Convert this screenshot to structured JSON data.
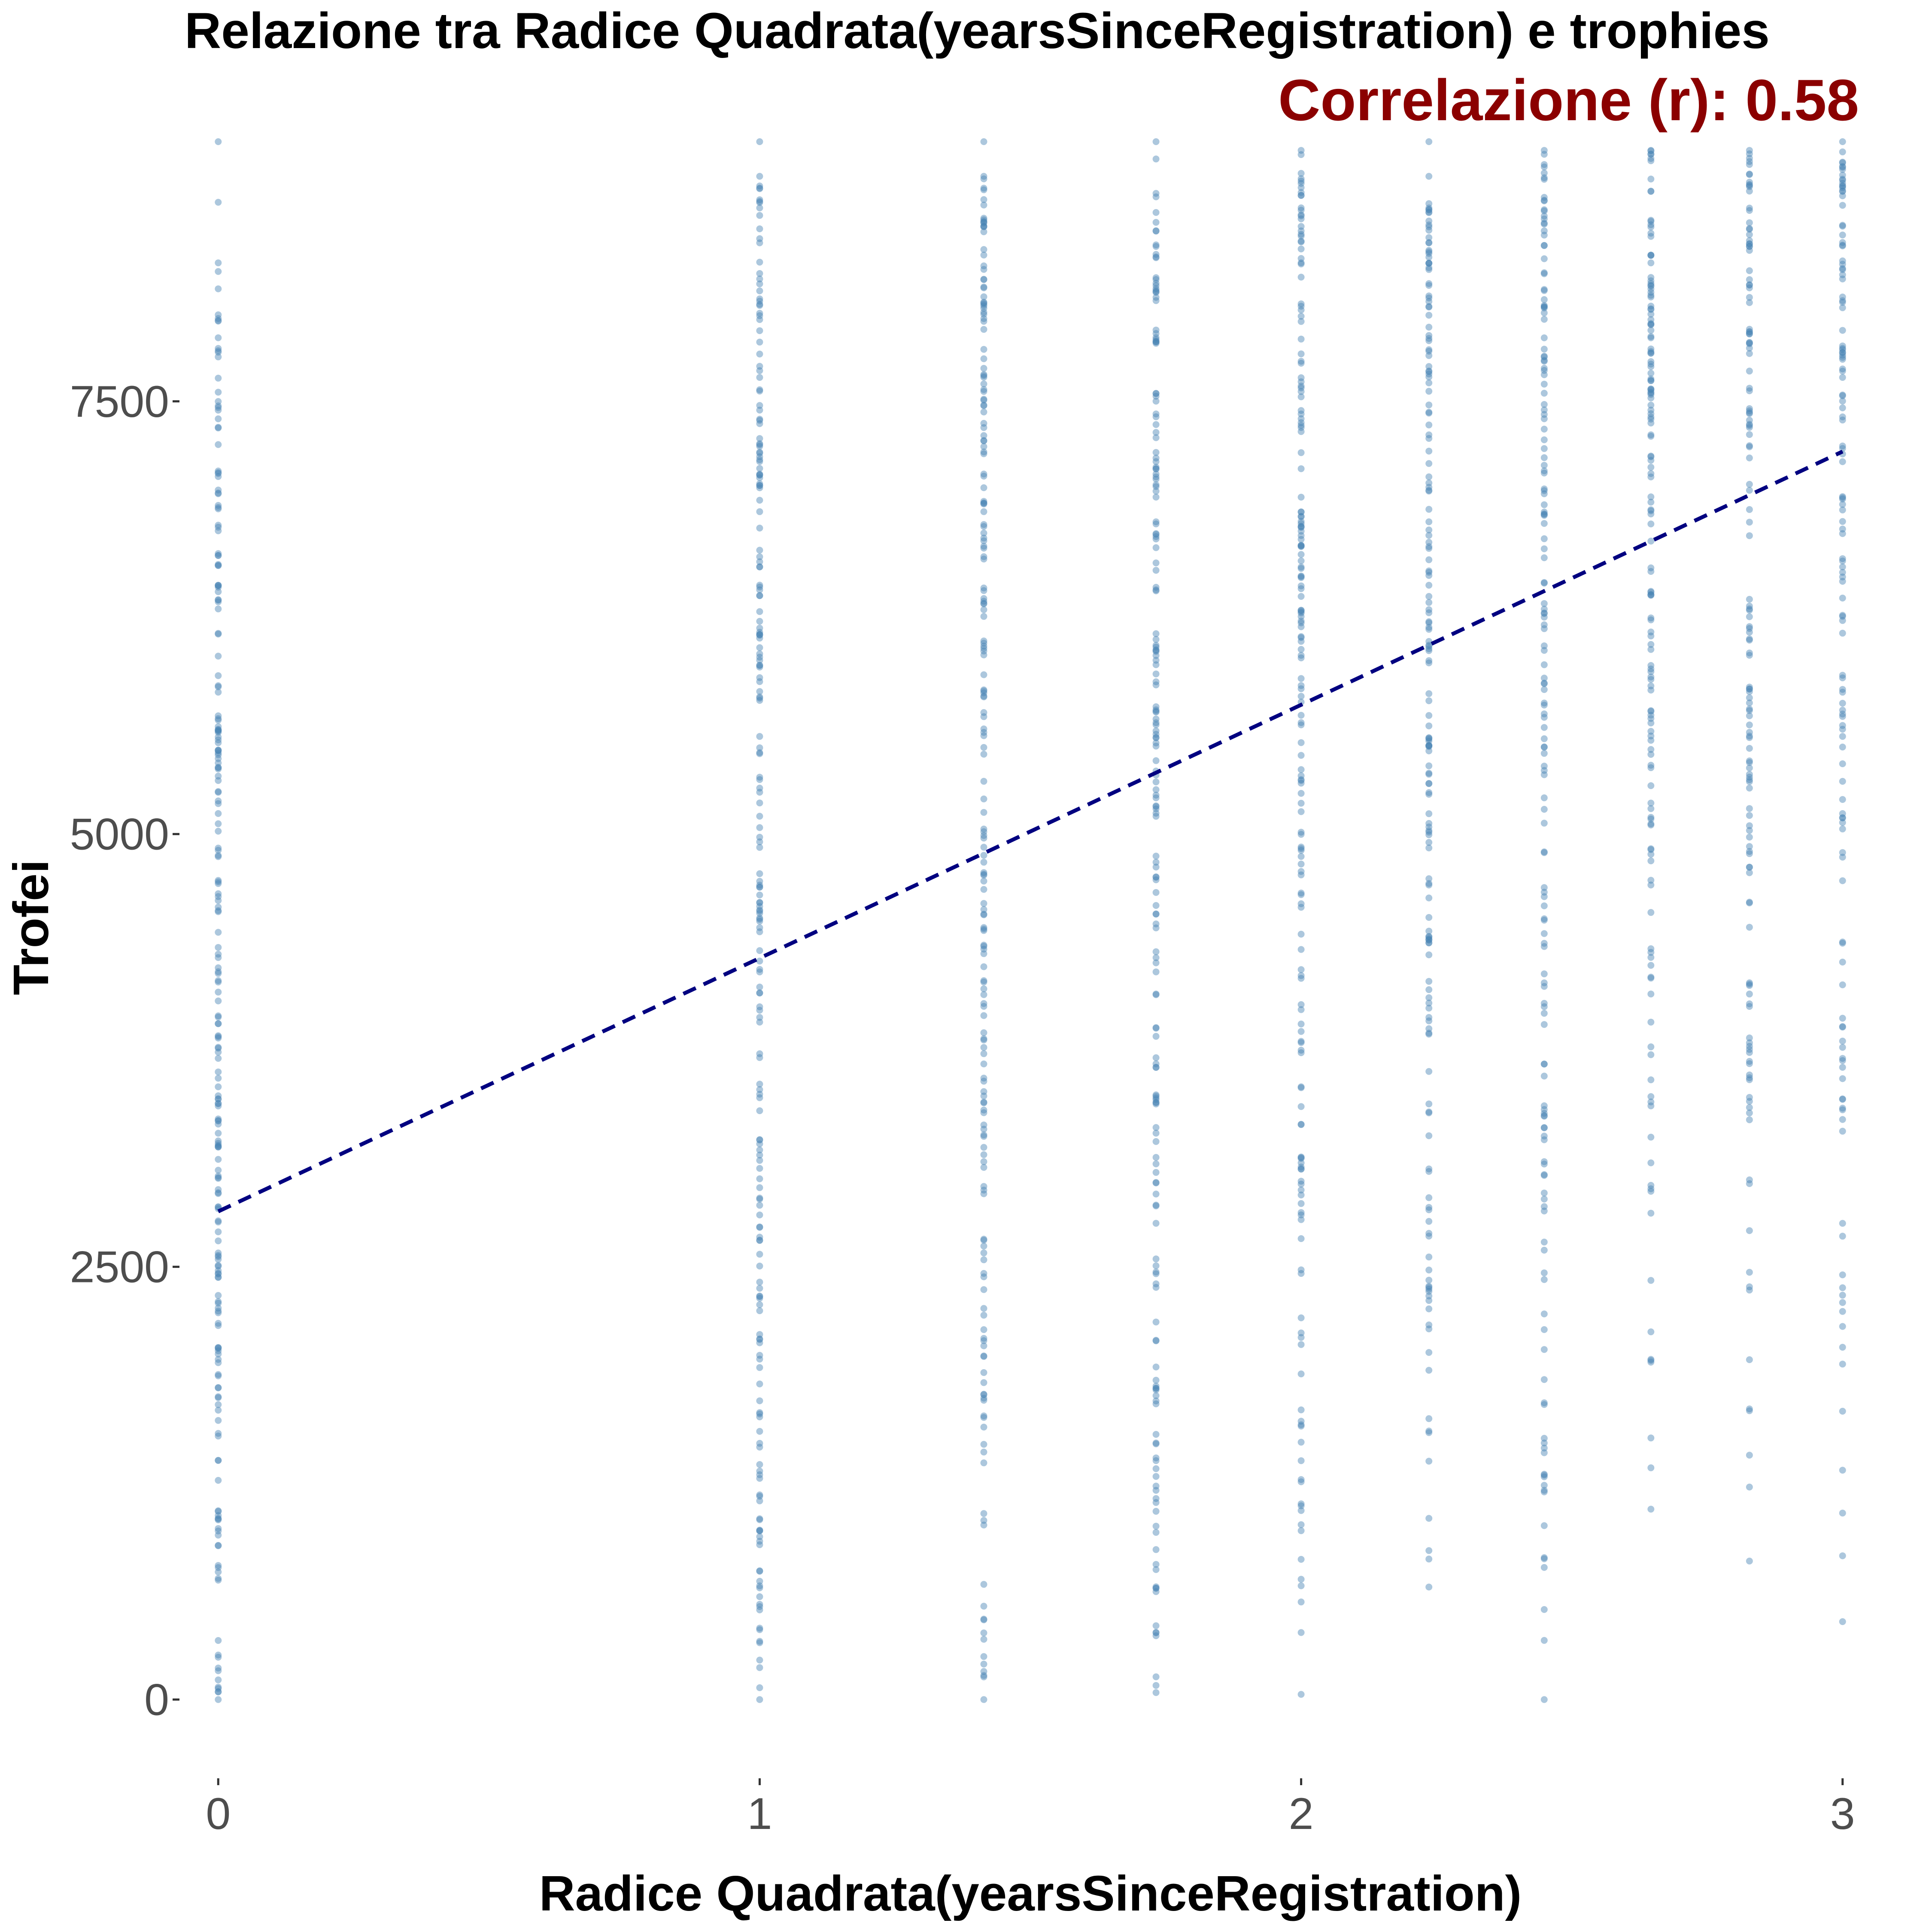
{
  "chart_data": {
    "type": "scatter",
    "title": "Relazione tra Radice Quadrata(yearsSinceRegistration) e trophies",
    "subtitle": "Correlazione (r): 0.58",
    "xlabel": "Radice Quadrata(yearsSinceRegistration)",
    "ylabel": "Trofei",
    "xlim": [
      -0.07,
      3.07
    ],
    "ylim": [
      -450,
      9000
    ],
    "x_ticks": [
      0,
      1,
      2,
      3
    ],
    "x_tick_labels": [
      "0",
      "1",
      "2",
      "3"
    ],
    "y_ticks": [
      0,
      2500,
      5000,
      7500
    ],
    "y_tick_labels": [
      "0",
      "2500",
      "5000",
      "7500"
    ],
    "grid": false,
    "legend": "none",
    "point_color": "#4682B4",
    "trendline": {
      "style": "dashed",
      "color": "#000080",
      "x": [
        0,
        3
      ],
      "y": [
        2820,
        7210
      ]
    },
    "series": [
      {
        "x": 0,
        "y_range": [
          0,
          8000
        ],
        "outliers": [
          8150,
          8250,
          8300,
          8650,
          9000
        ]
      },
      {
        "x": 1,
        "y_range": [
          0,
          8800
        ],
        "outliers": [
          9000
        ]
      },
      {
        "x": 1.414,
        "y_range": [
          0,
          8800
        ],
        "outliers": [
          9000
        ]
      },
      {
        "x": 1.732,
        "y_range": [
          40,
          8900
        ],
        "outliers": [
          9000
        ]
      },
      {
        "x": 2,
        "y_range": [
          30,
          8950
        ],
        "outliers": []
      },
      {
        "x": 2.236,
        "y_range": [
          650,
          8800
        ],
        "outliers": [
          9000
        ]
      },
      {
        "x": 2.449,
        "y_range": [
          0,
          8950
        ],
        "outliers": []
      },
      {
        "x": 2.646,
        "y_range": [
          1100,
          8950
        ],
        "outliers": []
      },
      {
        "x": 2.828,
        "y_range": [
          800,
          8950
        ],
        "outliers": []
      },
      {
        "x": 3,
        "y_range": [
          450,
          9000
        ],
        "outliers": []
      }
    ]
  }
}
